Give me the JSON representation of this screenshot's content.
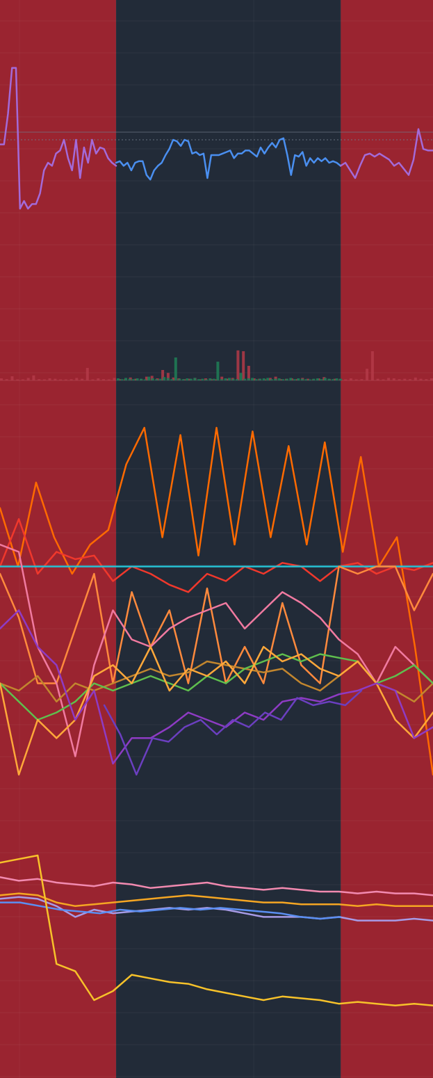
{
  "colors": {
    "background": "#222b38",
    "regime_red": "#9a2430",
    "grid": "#2c3644",
    "baseline": "#6f7a8a",
    "price_purple": "#a46ad8",
    "price_blue": "#4a8ff0",
    "volume_red": "#b33a48",
    "volume_green": "#1f7a55"
  },
  "chart_data": [
    {
      "type": "area",
      "subtype": "regime-bands",
      "x_range": [
        0,
        1
      ],
      "bands": [
        {
          "start": 0.0,
          "end": 0.268,
          "state": "red"
        },
        {
          "start": 0.268,
          "end": 0.787,
          "state": "neutral"
        },
        {
          "start": 0.787,
          "end": 1.0,
          "state": "red"
        }
      ]
    },
    {
      "type": "line",
      "panel": "price",
      "ylim": [
        0,
        1
      ],
      "reference_lines": [
        0.5,
        0.45
      ],
      "series": [
        {
          "color": "#a46ad8",
          "segment": "pre",
          "values": [
            0.42,
            0.42,
            0.62,
            0.92,
            0.92,
            0.0,
            0.05,
            0.0,
            0.03,
            0.03,
            0.1,
            0.25,
            0.3,
            0.28,
            0.36,
            0.38,
            0.45,
            0.33,
            0.25,
            0.45,
            0.2,
            0.4,
            0.3,
            0.45,
            0.36,
            0.4,
            0.39,
            0.33,
            0.3,
            0.28
          ]
        },
        {
          "color": "#4a8ff0",
          "segment": "mid",
          "values": [
            0.3,
            0.31,
            0.28,
            0.3,
            0.25,
            0.3,
            0.31,
            0.31,
            0.22,
            0.19,
            0.25,
            0.28,
            0.3,
            0.35,
            0.39,
            0.45,
            0.44,
            0.41,
            0.45,
            0.44,
            0.36,
            0.37,
            0.35,
            0.36,
            0.2,
            0.35,
            0.35,
            0.35,
            0.36,
            0.37,
            0.38,
            0.33,
            0.36,
            0.36,
            0.38,
            0.38,
            0.36,
            0.34,
            0.4,
            0.36,
            0.4,
            0.43,
            0.4,
            0.45,
            0.46,
            0.35,
            0.22,
            0.35,
            0.34,
            0.37,
            0.28,
            0.33,
            0.3,
            0.33,
            0.31,
            0.33,
            0.3,
            0.31,
            0.3,
            0.28
          ]
        },
        {
          "color": "#a46ad8",
          "segment": "post",
          "values": [
            0.28,
            0.3,
            0.25,
            0.2,
            0.28,
            0.35,
            0.36,
            0.34,
            0.36,
            0.34,
            0.32,
            0.28,
            0.3,
            0.26,
            0.22,
            0.32,
            0.52,
            0.39,
            0.38,
            0.38
          ]
        }
      ]
    },
    {
      "type": "bar",
      "panel": "volume",
      "ylim": [
        0,
        1
      ],
      "series": [
        {
          "name": "",
          "color": "#b33a48",
          "values": [
            0.05,
            0.03,
            0.1,
            0.02,
            0.01,
            0.06,
            0.12,
            0.03,
            0.02,
            0.05,
            0.04,
            0.02,
            0.01,
            0.03,
            0.06,
            0.04,
            0.3,
            0.02,
            0.05,
            0.03,
            0.02,
            0.06,
            0.03,
            0.02,
            0.07,
            0.04,
            0.03,
            0.09,
            0.11,
            0.05,
            0.25,
            0.18,
            0.07,
            0.05,
            0.03,
            0.04,
            0.06,
            0.02,
            0.05,
            0.03,
            0.02,
            0.09,
            0.04,
            0.06,
            0.72,
            0.7,
            0.35,
            0.05,
            0.04,
            0.02,
            0.06,
            0.09,
            0.03,
            0.04,
            0.05,
            0.03,
            0.06,
            0.04,
            0.02,
            0.05,
            0.08,
            0.03,
            0.04,
            0.03,
            0.02,
            0.05,
            0.02,
            0.03,
            0.28,
            0.7,
            0.04,
            0.02,
            0.06,
            0.05,
            0.03,
            0.04,
            0.03,
            0.07,
            0.04,
            0.03,
            0.05
          ]
        },
        {
          "name": "",
          "color": "#1f7a55",
          "values": [
            0.05,
            0.03,
            0.06,
            0.04,
            0.03,
            0.05,
            0.04,
            0.02,
            0.09,
            0.05,
            0.03,
            0.04,
            0.08,
            0.06,
            0.03,
            0.55,
            0.04,
            0.03,
            0.05,
            0.04,
            0.06,
            0.03,
            0.04,
            0.02,
            0.05,
            0.04,
            0.45,
            0.03,
            0.05,
            0.06,
            0.04,
            0.03,
            0.18,
            0.04,
            0.05,
            0.06,
            0.03,
            0.04,
            0.05,
            0.06,
            0.03,
            0.04,
            0.05,
            0.03,
            0.04,
            0.06,
            0.03,
            0.05,
            0.04,
            0.03,
            0.02,
            0.04,
            0.05,
            0.03,
            0.06,
            0.04,
            0.03,
            0.05,
            0.04
          ]
        }
      ]
    },
    {
      "type": "line",
      "panel": "oscillators",
      "ylim": [
        0,
        1
      ],
      "series": [
        {
          "color": "#ff6a00",
          "values": [
            0.78,
            0.62,
            0.85,
            0.7,
            0.6,
            0.68,
            0.72,
            0.9,
            1.0,
            0.7,
            0.98,
            0.65,
            1.0,
            0.68,
            0.99,
            0.7,
            0.95,
            0.68,
            0.96,
            0.66,
            0.92,
            0.62,
            0.7,
            0.4,
            0.05
          ]
        },
        {
          "color": "#f0382c",
          "values": [
            0.62,
            0.75,
            0.6,
            0.66,
            0.64,
            0.65,
            0.58,
            0.62,
            0.6,
            0.57,
            0.55,
            0.6,
            0.58,
            0.62,
            0.6,
            0.63,
            0.62,
            0.58,
            0.62,
            0.63,
            0.6,
            0.62,
            0.61,
            0.63
          ]
        },
        {
          "color": "#26c1d4",
          "values": [
            0.62,
            0.62,
            0.62,
            0.62,
            0.62,
            0.62,
            0.62,
            0.62,
            0.62,
            0.62,
            0.62,
            0.62,
            0.62,
            0.62,
            0.62,
            0.62,
            0.62,
            0.62,
            0.62,
            0.62,
            0.62,
            0.62,
            0.62,
            0.62
          ]
        },
        {
          "color": "#ff8a3d",
          "values": [
            0.6,
            0.48,
            0.3,
            0.3,
            0.45,
            0.6,
            0.3,
            0.55,
            0.4,
            0.5,
            0.3,
            0.56,
            0.3,
            0.4,
            0.3,
            0.52,
            0.35,
            0.3,
            0.62,
            0.6,
            0.62,
            0.62,
            0.5,
            0.6
          ]
        },
        {
          "color": "#f07aa0",
          "values": [
            0.68,
            0.66,
            0.4,
            0.3,
            0.1,
            0.35,
            0.5,
            0.42,
            0.4,
            0.45,
            0.48,
            0.5,
            0.52,
            0.45,
            0.5,
            0.55,
            0.52,
            0.48,
            0.42,
            0.38,
            0.3,
            0.4,
            0.35,
            0.3
          ]
        },
        {
          "color": "#c2862e",
          "values": [
            0.3,
            0.28,
            0.32,
            0.25,
            0.3,
            0.28,
            0.3,
            0.32,
            0.34,
            0.32,
            0.33,
            0.36,
            0.35,
            0.34,
            0.33,
            0.34,
            0.3,
            0.28,
            0.32,
            0.36,
            0.3,
            0.28,
            0.25,
            0.3
          ]
        },
        {
          "color": "#5fbf4e",
          "values": [
            0.3,
            0.25,
            0.2,
            0.22,
            0.25,
            0.3,
            0.28,
            0.3,
            0.32,
            0.3,
            0.28,
            0.32,
            0.3,
            0.34,
            0.36,
            0.38,
            0.36,
            0.38,
            0.37,
            0.36,
            0.3,
            0.32,
            0.35,
            0.3
          ]
        },
        {
          "color": "#ffa83a",
          "values": [
            0.3,
            0.05,
            0.2,
            0.15,
            0.2,
            0.32,
            0.35,
            0.3,
            0.4,
            0.28,
            0.34,
            0.32,
            0.36,
            0.3,
            0.4,
            0.36,
            0.38,
            0.34,
            0.32,
            0.36,
            0.3,
            0.2,
            0.15,
            0.22
          ]
        },
        {
          "color": "#8e3bc4",
          "values": [
            0.45,
            0.5,
            0.4,
            0.35,
            0.2,
            0.28,
            0.08,
            0.15,
            0.15,
            0.18,
            0.22,
            0.2,
            0.18,
            0.22,
            0.2,
            0.25,
            0.26,
            0.25,
            0.27,
            0.28,
            0.3,
            0.28,
            0.15,
            0.18
          ]
        },
        {
          "color": "#6b3fc0",
          "values": [
            0.24,
            0.16,
            0.05,
            0.15,
            0.14,
            0.18,
            0.2,
            0.16,
            0.2,
            0.18,
            0.22,
            0.2,
            0.26,
            0.24,
            0.25,
            0.24,
            0.28
          ]
        }
      ]
    },
    {
      "type": "line",
      "panel": "bands",
      "ylim": [
        0,
        1
      ],
      "series": [
        {
          "color": "#f28ab0",
          "values": [
            0.88,
            0.86,
            0.87,
            0.85,
            0.84,
            0.83,
            0.85,
            0.84,
            0.82,
            0.83,
            0.84,
            0.85,
            0.83,
            0.82,
            0.81,
            0.82,
            0.81,
            0.8,
            0.8,
            0.79,
            0.8,
            0.79,
            0.79,
            0.78
          ]
        },
        {
          "color": "#f5a623",
          "values": [
            0.78,
            0.79,
            0.78,
            0.74,
            0.72,
            0.73,
            0.74,
            0.75,
            0.76,
            0.77,
            0.78,
            0.77,
            0.76,
            0.75,
            0.74,
            0.74,
            0.73,
            0.73,
            0.73,
            0.72,
            0.73,
            0.72,
            0.72,
            0.72
          ]
        },
        {
          "color": "#a79be6",
          "values": [
            0.76,
            0.77,
            0.76,
            0.72,
            0.66,
            0.7,
            0.68,
            0.69,
            0.7,
            0.71,
            0.7,
            0.71,
            0.7,
            0.68,
            0.66,
            0.66,
            0.66,
            0.65,
            0.66,
            0.64,
            0.64,
            0.64,
            0.65,
            0.64
          ]
        },
        {
          "color": "#5b8ff2",
          "values": [
            0.74,
            0.74,
            0.72,
            0.7,
            0.69,
            0.68,
            0.7,
            0.69,
            0.7,
            0.71,
            0.7,
            0.71,
            0.7,
            0.69,
            0.68,
            0.66,
            0.65,
            0.66
          ]
        },
        {
          "color": "#f7c22a",
          "values": [
            0.96,
            0.98,
            1.0,
            0.4,
            0.36,
            0.2,
            0.25,
            0.34,
            0.32,
            0.3,
            0.29,
            0.26,
            0.24,
            0.22,
            0.2,
            0.22,
            0.21,
            0.2,
            0.18,
            0.19,
            0.18,
            0.17,
            0.18,
            0.17
          ]
        }
      ]
    }
  ]
}
